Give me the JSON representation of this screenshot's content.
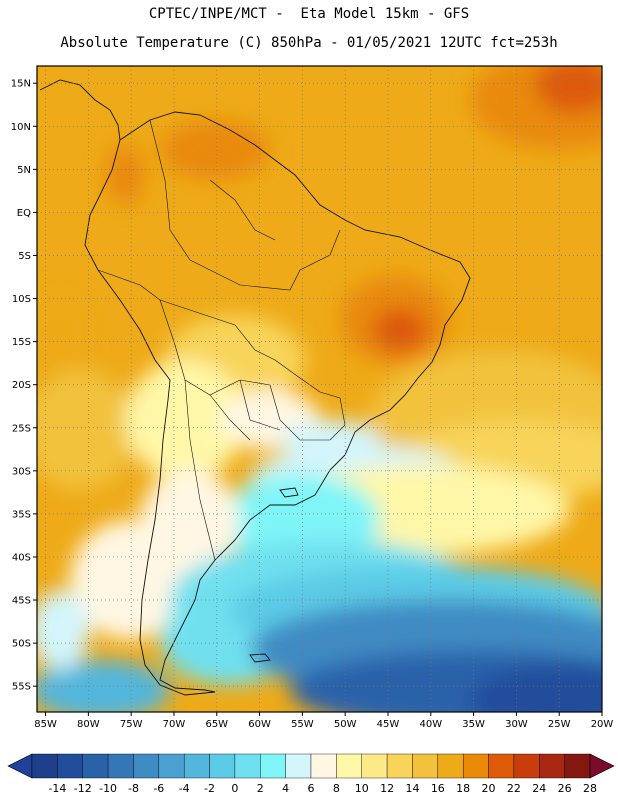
{
  "header": {
    "line1": "CPTEC/INPE/MCT -  Eta Model 15km - GFS",
    "line2": "Absolute Temperature (C) 850hPa - 01/05/2021 12UTC fct=253h"
  },
  "map": {
    "lat_labels": [
      "15N",
      "10N",
      "5N",
      "EQ",
      "5S",
      "10S",
      "15S",
      "20S",
      "25S",
      "30S",
      "35S",
      "40S",
      "45S",
      "50S",
      "55S"
    ],
    "lon_labels": [
      "85W",
      "80W",
      "75W",
      "70W",
      "65W",
      "60W",
      "55W",
      "50W",
      "45W",
      "40W",
      "35W",
      "30W",
      "25W",
      "20W"
    ],
    "lat_values": [
      15,
      10,
      5,
      0,
      -5,
      -10,
      -15,
      -20,
      -25,
      -30,
      -35,
      -40,
      -45,
      -50,
      -55
    ],
    "lon_values": [
      -85,
      -80,
      -75,
      -70,
      -65,
      -60,
      -55,
      -50,
      -45,
      -40,
      -35,
      -30,
      -25,
      -20
    ],
    "lat_range": [
      -58,
      17
    ],
    "lon_range": [
      -86,
      -20
    ]
  },
  "colorbar": {
    "labels": [
      "-14",
      "-12",
      "-10",
      "-8",
      "-6",
      "-4",
      "-2",
      "0",
      "2",
      "4",
      "6",
      "8",
      "10",
      "12",
      "14",
      "16",
      "18",
      "20",
      "22",
      "24",
      "26",
      "28"
    ],
    "colors": [
      "#1d3f8c",
      "#214e9b",
      "#2a62aa",
      "#3576b6",
      "#3f8bc4",
      "#4aa0d0",
      "#53b6dc",
      "#5ccbe6",
      "#6fe0ef",
      "#7ff5f8",
      "#d3f5fb",
      "#fff7e3",
      "#fff7a8",
      "#fcea88",
      "#f8d45a",
      "#f2c23c",
      "#eeaa18",
      "#e98a08",
      "#dd5a08",
      "#c73e0b",
      "#a82710",
      "#821810"
    ],
    "under_color": "#21409a",
    "over_color": "#7a0b2a"
  }
}
